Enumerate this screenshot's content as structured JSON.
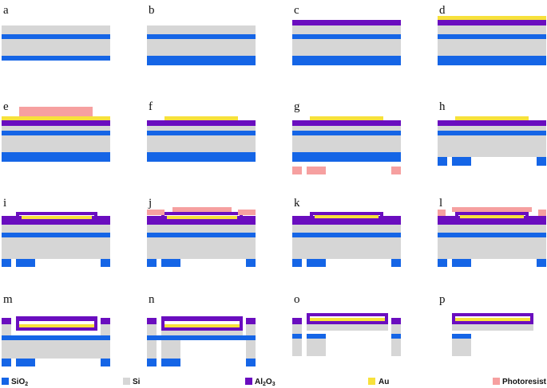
{
  "panels": [
    "a",
    "b",
    "c",
    "d",
    "e",
    "f",
    "g",
    "h",
    "i",
    "j",
    "k",
    "l",
    "m",
    "n",
    "o",
    "p"
  ],
  "legend": {
    "sio2": {
      "label": "SiO",
      "sub": "2"
    },
    "si": {
      "label": "Si"
    },
    "al2o3": {
      "label": "Al",
      "sub1": "2",
      "mid": "O",
      "sub2": "3"
    },
    "au": {
      "label": "Au"
    },
    "photoresist": {
      "label": "Photoresist"
    }
  },
  "colors": {
    "sio2": "#1565e6",
    "si": "#d6d6d6",
    "al2o3": "#6a0dbf",
    "au": "#f7e13b",
    "photoresist": "#f6a0a0"
  }
}
